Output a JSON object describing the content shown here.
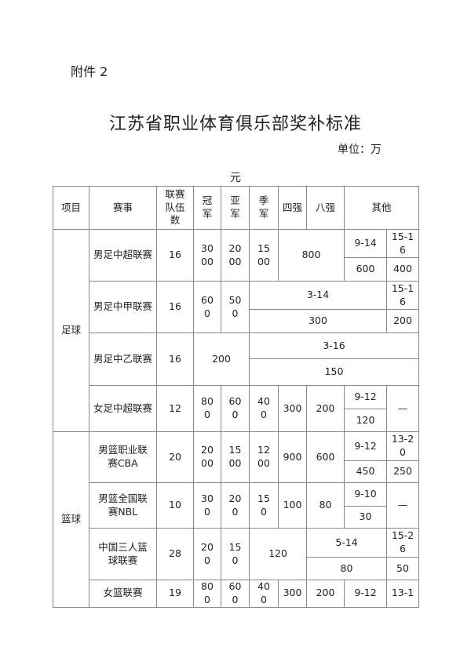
{
  "attachment": "附件 2",
  "title": "江苏省职业体育俱乐部奖补标准",
  "unit_line1": "单位：万",
  "unit_line2": "元",
  "table": {
    "headers": [
      "项目",
      "赛事",
      "联赛队伍数",
      "冠军",
      "亚军",
      "季军",
      "四强",
      "八强",
      "其他"
    ],
    "groups": [
      {
        "sport": "足球"
      },
      {
        "sport": "篮球"
      }
    ],
    "rows": [
      {
        "event": "男足中超联赛",
        "teams": "16",
        "c1": "3000",
        "c2": "2000",
        "c3": "1500",
        "merged": "800",
        "o1_label": "9-14",
        "o2_label": "15-16",
        "o1_value": "600",
        "o2_value": "400"
      },
      {
        "event": "男足中甲联赛",
        "teams": "16",
        "c1": "600",
        "c2": "500",
        "o1_label": "3-14",
        "o2_label": "15-16",
        "o1_value": "300",
        "o2_value": "200"
      },
      {
        "event": "男足中乙联赛",
        "teams": "16",
        "merged": "200",
        "o1_label": "3-16",
        "o1_value": "150"
      },
      {
        "event": "女足中超联赛",
        "teams": "12",
        "c1": "800",
        "c2": "600",
        "c3": "400",
        "c4": "300",
        "c8": "200",
        "o1_label": "9-12",
        "o1_value": "120",
        "o2": "—"
      },
      {
        "event": "男篮职业联赛CBA",
        "teams": "20",
        "c1": "2000",
        "c2": "1500",
        "c3": "1200",
        "c4": "900",
        "c8": "600",
        "o1_label": "9-12",
        "o2_label": "13-20",
        "o1_value": "450",
        "o2_value": "250"
      },
      {
        "event": "男篮全国联赛NBL",
        "teams": "10",
        "c1": "300",
        "c2": "200",
        "c3": "150",
        "c4": "100",
        "c8": "80",
        "o1_label": "9-10",
        "o1_value": "30",
        "o2": "—"
      },
      {
        "event": "中国三人篮球联赛",
        "teams": "28",
        "c1": "200",
        "c2": "150",
        "merged": "120",
        "o1_label": "5-14",
        "o2_label": "15-26",
        "o1_value": "80",
        "o2_value": "50"
      },
      {
        "event": "女篮联赛",
        "teams": "19",
        "c1": "800",
        "c2": "600",
        "c3": "400",
        "c4": "300",
        "c8": "200",
        "o1": "9-12",
        "o2": "13-1"
      }
    ]
  }
}
